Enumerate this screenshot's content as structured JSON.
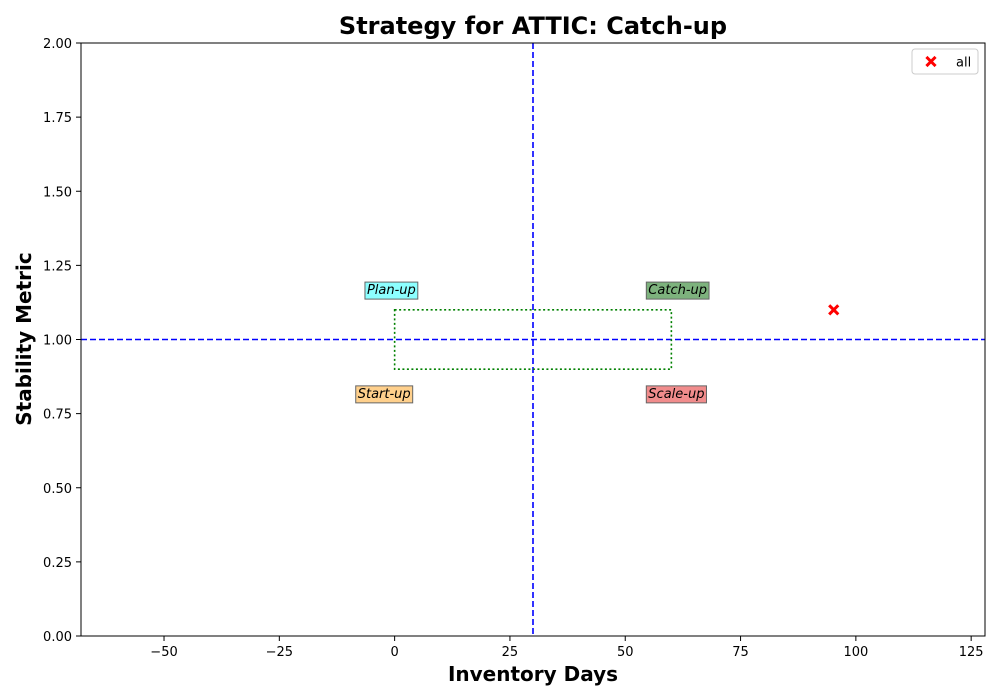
{
  "chart_data": {
    "type": "scatter",
    "title": "Strategy for ATTIC: Catch-up",
    "xlabel": "Inventory Days",
    "ylabel": "Stability Metric",
    "xlim": [
      -68,
      128
    ],
    "ylim": [
      0,
      2.0
    ],
    "xticks": [
      -50,
      -25,
      0,
      25,
      50,
      75,
      100,
      125
    ],
    "xtick_labels": [
      "−50",
      "−25",
      "0",
      "25",
      "50",
      "75",
      "100",
      "125"
    ],
    "yticks": [
      0,
      0.25,
      0.5,
      0.75,
      1.0,
      1.25,
      1.5,
      1.75,
      2.0
    ],
    "ytick_labels": [
      "0.00",
      "0.25",
      "0.50",
      "0.75",
      "1.00",
      "1.25",
      "1.50",
      "1.75",
      "2.00"
    ],
    "grid": false,
    "legend_position": "top-right",
    "series": [
      {
        "name": "all",
        "marker": "x",
        "color": "#ff0000",
        "points": [
          {
            "x": 95.2,
            "y": 1.1
          }
        ]
      }
    ],
    "reference_lines": {
      "vertical_x": 30,
      "horizontal_y": 1.0,
      "color": "#0000ff",
      "style": "dashed"
    },
    "target_box": {
      "x0": 0,
      "x1": 60,
      "y0": 0.9,
      "y1": 1.1,
      "color": "#008000",
      "style": "dotted"
    },
    "quadrant_labels": [
      {
        "text": "Plan-up",
        "x": -6,
        "y": 1.17,
        "bg": "#80ffff"
      },
      {
        "text": "Catch-up",
        "x": 55,
        "y": 1.17,
        "bg": "#6faa6f"
      },
      {
        "text": "Start-up",
        "x": -8,
        "y": 0.82,
        "bg": "#ffcc80"
      },
      {
        "text": "Scale-up",
        "x": 55,
        "y": 0.82,
        "bg": "#f08080"
      }
    ]
  }
}
